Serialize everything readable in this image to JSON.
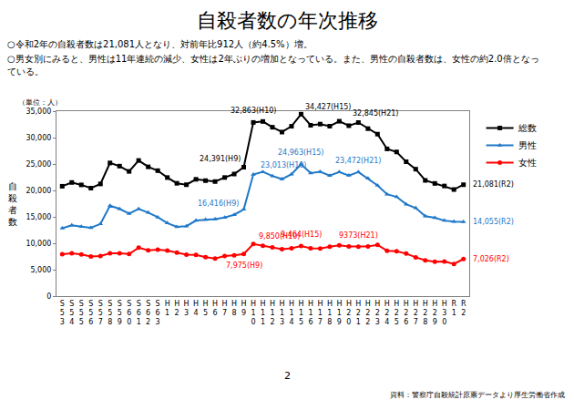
{
  "chart_data": {
    "type": "line",
    "title": "自殺者数の年次推移",
    "notes": [
      "○令和2年の自殺者数は21,081人となり、対前年比912人（約4.5%）増。",
      "○男女別にみると、男性は11年連続の減少、女性は2年ぶりの増加となっている。また、男性の自殺者数は、女性の約2.0倍となっ",
      "ている。"
    ],
    "unit_label": "（単位：人）",
    "y_label": "自殺者数",
    "page_number": "2",
    "source": "資料：警察庁自殺統計原票データより厚生労働省作成",
    "categories": [
      "S53",
      "S54",
      "S55",
      "S56",
      "S57",
      "S58",
      "S59",
      "S60",
      "S61",
      "S62",
      "S63",
      "H1",
      "H2",
      "H3",
      "H4",
      "H5",
      "H6",
      "H7",
      "H8",
      "H9",
      "H10",
      "H11",
      "H12",
      "H13",
      "H14",
      "H15",
      "H16",
      "H17",
      "H18",
      "H19",
      "H20",
      "H21",
      "H22",
      "H23",
      "H24",
      "H25",
      "H26",
      "H27",
      "H28",
      "H29",
      "H30",
      "R1",
      "R2"
    ],
    "series": [
      {
        "name": "総数",
        "color": "#000000",
        "marker": "square",
        "line_style": "solid",
        "values": [
          20788,
          21503,
          21048,
          20434,
          21228,
          25202,
          24596,
          23599,
          25667,
          24460,
          23742,
          22436,
          21346,
          21084,
          22104,
          21851,
          21679,
          22445,
          23104,
          24391,
          32863,
          33048,
          31957,
          31042,
          32143,
          34427,
          32325,
          32552,
          32155,
          33093,
          32249,
          32845,
          31690,
          30651,
          27858,
          27283,
          25427,
          24025,
          21897,
          21321,
          20840,
          20169,
          21081
        ]
      },
      {
        "name": "男性",
        "color": "#1f78c8",
        "marker": "triangle-up",
        "line_style": "solid",
        "values": [
          12859,
          13386,
          13155,
          12942,
          13654,
          17116,
          16508,
          15624,
          16497,
          15802,
          14934,
          13818,
          13102,
          13242,
          14296,
          14468,
          14560,
          14874,
          15393,
          16416,
          23013,
          23512,
          22727,
          22144,
          23080,
          24963,
          23272,
          23540,
          22813,
          23478,
          22831,
          23472,
          22283,
          20955,
          19273,
          18787,
          17386,
          16681,
          15121,
          14826,
          14290,
          14078,
          14055
        ]
      },
      {
        "name": "女性",
        "color": "#ff0000",
        "marker": "circle",
        "line_style": "solid",
        "values": [
          7929,
          8117,
          7893,
          7492,
          7574,
          8086,
          8088,
          7975,
          9170,
          8658,
          8808,
          8618,
          8244,
          7842,
          7808,
          7383,
          7119,
          7571,
          7711,
          7975,
          9850,
          9536,
          9230,
          8898,
          9063,
          9464,
          9053,
          9012,
          9342,
          9615,
          9418,
          9373,
          9407,
          9696,
          8585,
          8496,
          8041,
          7344,
          6776,
          6495,
          6550,
          6091,
          7026
        ]
      }
    ],
    "annotations": [
      {
        "text": "24,391(H9)",
        "category": "H9",
        "value": 24391,
        "color": "#000000"
      },
      {
        "text": "32,863(H10)",
        "category": "H10",
        "value": 32863,
        "color": "#000000"
      },
      {
        "text": "34,427(H15)",
        "category": "H15",
        "value": 34427,
        "color": "#000000"
      },
      {
        "text": "32,845(H21)",
        "category": "H21",
        "value": 32845,
        "color": "#000000"
      },
      {
        "text": "21,081(R2)",
        "category": "R2",
        "value": 21081,
        "color": "#000000"
      },
      {
        "text": "23,013(H10)",
        "category": "H10",
        "value": 23013,
        "color": "#1f78c8"
      },
      {
        "text": "16,416(H9)",
        "category": "H9",
        "value": 16416,
        "color": "#1f78c8"
      },
      {
        "text": "24,963(H15)",
        "category": "H15",
        "value": 24963,
        "color": "#1f78c8"
      },
      {
        "text": "23,472(H21)",
        "category": "H21",
        "value": 23472,
        "color": "#1f78c8"
      },
      {
        "text": "14,055(R2)",
        "category": "R2",
        "value": 14055,
        "color": "#1f78c8"
      },
      {
        "text": "9,850(H10)",
        "category": "H10",
        "value": 9850,
        "color": "#ff0000"
      },
      {
        "text": "9,464(H15)",
        "category": "H15",
        "value": 9464,
        "color": "#ff0000"
      },
      {
        "text": "9373(H21)",
        "category": "H21",
        "value": 9373,
        "color": "#ff0000"
      },
      {
        "text": "7,975(H9)",
        "category": "H9",
        "value": 7975,
        "color": "#ff0000"
      },
      {
        "text": "7,026(R2)",
        "category": "R2",
        "value": 7026,
        "color": "#ff0000"
      }
    ],
    "ylim": [
      0,
      35000
    ],
    "yticks": [
      0,
      {
        "value": 5000,
        "label": "5,000"
      },
      {
        "value": 10000,
        "label": "10,000"
      },
      {
        "value": 15000,
        "label": "15,000"
      },
      {
        "value": 20000,
        "label": "20,000"
      },
      {
        "value": 25000,
        "label": "25,000"
      },
      {
        "value": 30000,
        "label": "30,000"
      },
      {
        "value": 35000,
        "label": "35,000"
      }
    ],
    "grid": false,
    "legend": "right"
  }
}
